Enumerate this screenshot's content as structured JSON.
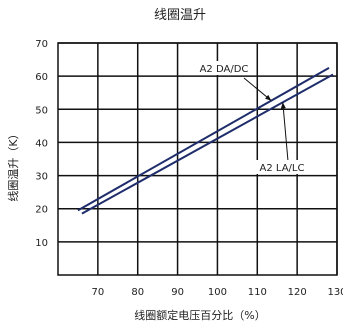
{
  "chart_data": {
    "type": "line",
    "title": "线圈温升",
    "xlabel": "线圈额定电压百分比（%）",
    "ylabel": "线圈温升（K）",
    "xlim": [
      60,
      130
    ],
    "ylim": [
      0,
      70
    ],
    "x_ticks": [
      70,
      80,
      90,
      100,
      110,
      120,
      130
    ],
    "y_ticks": [
      10,
      20,
      30,
      40,
      50,
      60,
      70
    ],
    "grid": true,
    "series": [
      {
        "name": "A2 DA/DC",
        "x": [
          65,
          128
        ],
        "y": [
          19.5,
          62.5
        ]
      },
      {
        "name": "A2 LA/LC",
        "x": [
          66,
          129
        ],
        "y": [
          18.5,
          60.5
        ]
      }
    ],
    "annotations": [
      {
        "text": "A2 DA/DC",
        "series": 0
      },
      {
        "text": "A2  LA/LC",
        "series": 1
      }
    ],
    "line_color": "#1f2d6b"
  }
}
